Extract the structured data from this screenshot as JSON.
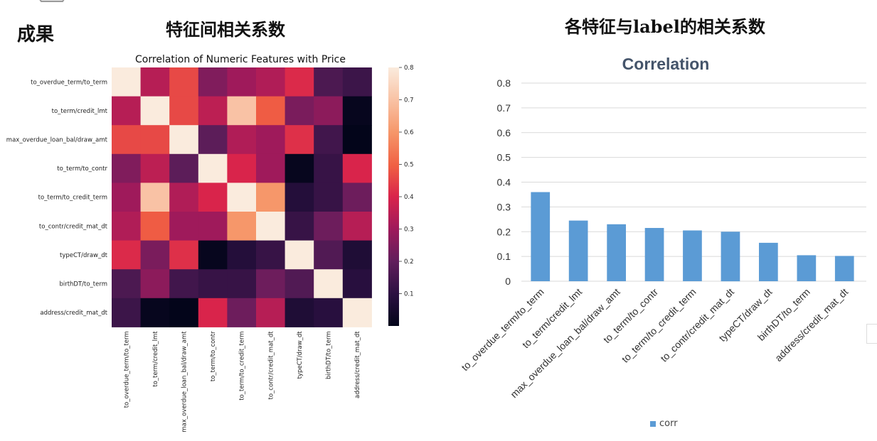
{
  "header": {
    "slide_tag": "成果",
    "left_title": "特征间相关系数",
    "right_title": "各特征与label的相关系数"
  },
  "colors": {
    "bar": "#5b9bd5",
    "bar_dark": "#4a88c4",
    "grid": "#d9d9d9",
    "title": "#44546a"
  },
  "chart_data": [
    {
      "type": "heatmap",
      "title": "Correlation of Numeric Features with Price",
      "rows": [
        "to_overdue_term/to_term",
        "to_term/credit_lmt",
        "max_overdue_loan_bal/draw_amt",
        "to_term/to_contr",
        "to_term/to_credit_term",
        "to_contr/credit_mat_dt",
        "typeCT/draw_dt",
        "birthDT/to_term",
        "address/credit_mat_dt"
      ],
      "columns": [
        "to_overdue_term/to_term",
        "to_term/credit_lmt",
        "max_overdue_loan_bal/draw_amt",
        "to_term/to_contr",
        "to_term/to_credit_term",
        "to_contr/credit_mat_dt",
        "typeCT/draw_dt",
        "birthDT/to_term",
        "address/credit_mat_dt"
      ],
      "values": [
        [
          1.0,
          0.34,
          0.46,
          0.25,
          0.3,
          0.33,
          0.41,
          0.16,
          0.13
        ],
        [
          0.34,
          1.0,
          0.46,
          0.35,
          0.7,
          0.49,
          0.24,
          0.27,
          0.01
        ],
        [
          0.46,
          0.46,
          1.0,
          0.19,
          0.33,
          0.3,
          0.42,
          0.14,
          0.0
        ],
        [
          0.25,
          0.35,
          0.19,
          1.0,
          0.4,
          0.3,
          0.01,
          0.12,
          0.4
        ],
        [
          0.3,
          0.7,
          0.33,
          0.4,
          1.0,
          0.6,
          0.08,
          0.12,
          0.22
        ],
        [
          0.33,
          0.49,
          0.3,
          0.3,
          0.6,
          1.0,
          0.12,
          0.22,
          0.34
        ],
        [
          0.41,
          0.24,
          0.42,
          0.01,
          0.08,
          0.12,
          1.0,
          0.17,
          0.07
        ],
        [
          0.16,
          0.27,
          0.14,
          0.12,
          0.12,
          0.22,
          0.17,
          1.0,
          0.09
        ],
        [
          0.13,
          0.01,
          0.0,
          0.4,
          0.22,
          0.34,
          0.07,
          0.09,
          1.0
        ]
      ],
      "colorbar": {
        "min": 0.0,
        "max": 0.8,
        "ticks": [
          "0.1",
          "0.2",
          "0.3",
          "0.4",
          "0.5",
          "0.6",
          "0.7",
          "0.8"
        ]
      }
    },
    {
      "type": "bar",
      "title": "Correlation",
      "categories": [
        "to_overdue_term/to_term",
        "to_term/credit_lmt",
        "max_overdue_loan_bal/draw_amt",
        "to_term/to_contr",
        "to_term/to_credit_term",
        "to_contr/credit_mat_dt",
        "typeCT/draw_dt",
        "birthDT/to_term",
        "address/credit_mat_dt"
      ],
      "series": [
        {
          "name": "corr",
          "values": [
            0.36,
            0.245,
            0.23,
            0.215,
            0.205,
            0.2,
            0.155,
            0.105,
            0.102
          ]
        }
      ],
      "ylim": [
        0,
        0.8
      ],
      "yticks": [
        "0",
        "0.1",
        "0.2",
        "0.3",
        "0.4",
        "0.5",
        "0.6",
        "0.7",
        "0.8"
      ],
      "grid": true,
      "legend": "bottom"
    }
  ]
}
